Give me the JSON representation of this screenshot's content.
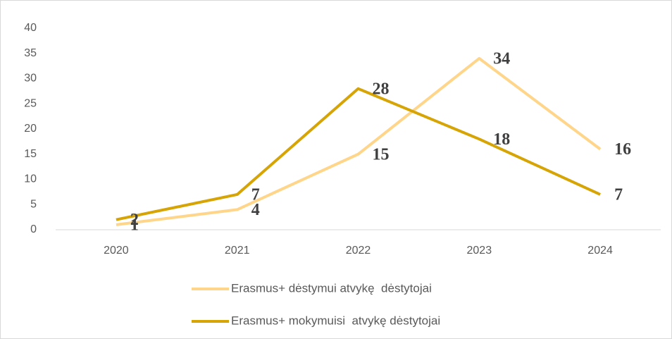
{
  "chart_data": {
    "type": "line",
    "categories": [
      "2020",
      "2021",
      "2022",
      "2023",
      "2024"
    ],
    "series": [
      {
        "name": "Erasmus+ dėstymui atvykę  dėstytojai",
        "color": "#ffd58a",
        "values": [
          1,
          4,
          15,
          34,
          16
        ]
      },
      {
        "name": "Erasmus+ mokymuisi  atvykę dėstytojai",
        "color": "#d6a404",
        "values": [
          2,
          7,
          28,
          18,
          7
        ]
      }
    ],
    "ylim": [
      0,
      40
    ],
    "yticks": [
      0,
      5,
      10,
      15,
      20,
      25,
      30,
      35,
      40
    ],
    "grid": false
  }
}
